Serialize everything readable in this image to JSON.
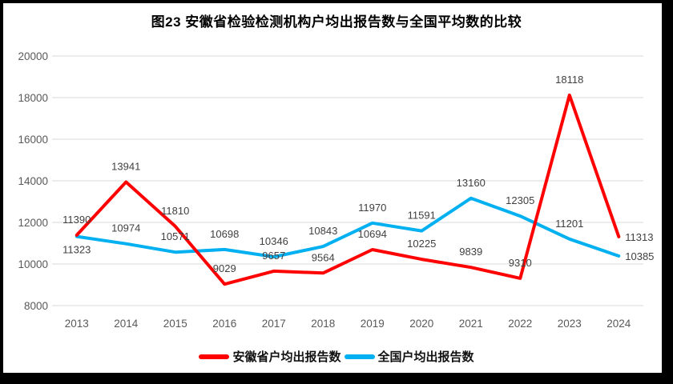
{
  "chart_data": {
    "type": "line",
    "title": "图23 安徽省检验检测机构户均出报告数与全国平均数的比较",
    "categories": [
      "2013",
      "2014",
      "2015",
      "2016",
      "2017",
      "2018",
      "2019",
      "2020",
      "2021",
      "2022",
      "2023",
      "2024"
    ],
    "series": [
      {
        "name": "安徽省户均出报告数",
        "color": "#FF0000",
        "values": [
          11390,
          13941,
          11810,
          9029,
          9657,
          9564,
          10694,
          10225,
          9839,
          9310,
          18118,
          11313
        ],
        "label_placement": [
          "above",
          "above",
          "above",
          "above",
          "above",
          "above",
          "above",
          "above",
          "above",
          "above",
          "above",
          "right"
        ]
      },
      {
        "name": "全国户均出报告数",
        "color": "#00B0F0",
        "values": [
          11323,
          10974,
          10571,
          10698,
          10346,
          10843,
          11970,
          11591,
          13160,
          12305,
          11201,
          10385
        ],
        "label_placement": [
          "below",
          "above",
          "above",
          "above",
          "above",
          "above",
          "above",
          "above",
          "above",
          "above",
          "above",
          "right"
        ]
      }
    ],
    "yticks": [
      8000,
      10000,
      12000,
      14000,
      16000,
      18000,
      20000
    ],
    "ylim": [
      8000,
      20000
    ],
    "grid": "horizontal-only",
    "legend_position": "bottom",
    "gridline_color": "#D9D9D9",
    "tick_label_color": "#595959",
    "data_label_color": "#404040",
    "frame_color": "#000000"
  }
}
